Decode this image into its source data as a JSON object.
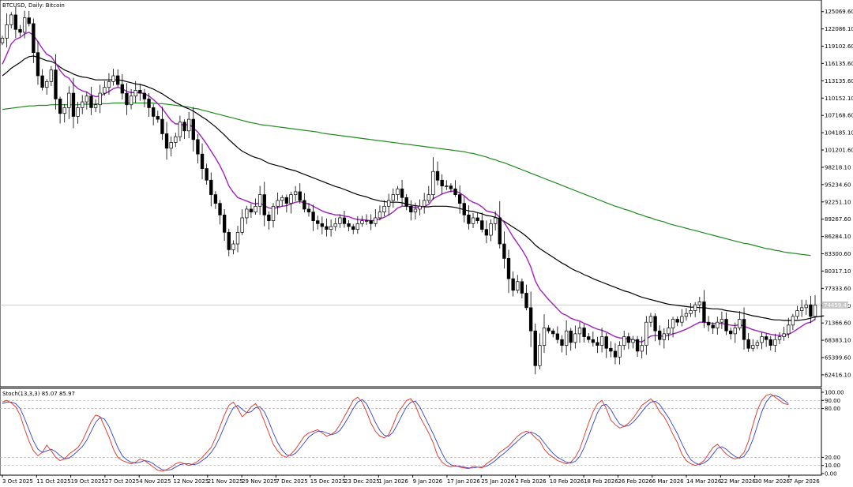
{
  "chart_data": {
    "type": "candlestick",
    "title": "BTCUSD, Daily:  Bitcoin",
    "indicator_title": "Stoch(13,3,3) 85.07 85.97",
    "current_price_label": "74459.43",
    "price_ticks": [
      "125069.60",
      "122086.10",
      "119102.60",
      "116135.60",
      "113135.60",
      "110152.10",
      "107168.60",
      "104185.10",
      "101201.60",
      "98218.10",
      "95234.60",
      "92251.10",
      "89267.60",
      "86284.10",
      "83300.60",
      "80317.10",
      "77333.60",
      "74350.10",
      "71366.60",
      "68383.10",
      "65399.60",
      "62416.10"
    ],
    "stoch_ticks": [
      "100.00",
      "90.00",
      "80.00",
      "20.00",
      "10.00",
      "0.00"
    ],
    "date_ticks": [
      "3 Oct 2025",
      "11 Oct 2025",
      "19 Oct 2025",
      "27 Oct 2025",
      "4 Nov 2025",
      "12 Nov 2025",
      "21 Nov 2025",
      "29 Nov 2025",
      "7 Dec 2025",
      "15 Dec 2025",
      "23 Dec 2025",
      "1 Jan 2026",
      "9 Jan 2026",
      "17 Jan 2026",
      "25 Jan 2026",
      "2 Feb 2026",
      "10 Feb 2026",
      "18 Feb 2026",
      "26 Feb 2026",
      "6 Mar 2026",
      "14 Mar 2026",
      "22 Mar 2026",
      "30 Mar 2026",
      "7 Apr 2026"
    ],
    "y_range": [
      60500,
      126800
    ],
    "stoch_range": [
      0,
      100
    ],
    "closes": [
      120500,
      122800,
      124500,
      122000,
      121500,
      124000,
      123000,
      118000,
      114000,
      112000,
      113000,
      115000,
      110000,
      107500,
      108500,
      111000,
      107000,
      108500,
      109500,
      110500,
      108500,
      109000,
      111000,
      112000,
      113000,
      114000,
      112500,
      111000,
      109000,
      110500,
      111500,
      111000,
      110000,
      108500,
      107000,
      106500,
      104000,
      101500,
      102500,
      103500,
      106000,
      104500,
      106500,
      103000,
      100500,
      98000,
      96000,
      93500,
      92000,
      90000,
      87000,
      84000,
      85000,
      87000,
      89500,
      91000,
      90500,
      91500,
      93500,
      90000,
      89000,
      91500,
      92500,
      93000,
      92000,
      93500,
      94000,
      92500,
      91000,
      90500,
      89000,
      88500,
      88000,
      87500,
      88000,
      88500,
      89500,
      88500,
      88000,
      87500,
      88500,
      89000,
      89000,
      88500,
      89500,
      90500,
      91500,
      92500,
      93500,
      94500,
      93000,
      91500,
      90500,
      91000,
      91500,
      92500,
      93500,
      97500,
      96000,
      95000,
      95000,
      94500,
      93500,
      92000,
      90000,
      88500,
      89500,
      89000,
      87500,
      86500,
      88500,
      89500,
      85000,
      82500,
      79000,
      77000,
      78500,
      76500,
      74000,
      70000,
      64000,
      67500,
      70500,
      70000,
      69500,
      68500,
      67500,
      70000,
      68000,
      69500,
      70500,
      69000,
      68500,
      68000,
      67500,
      69000,
      67000,
      66500,
      65500,
      67500,
      69000,
      68000,
      68500,
      66500,
      67500,
      71500,
      72500,
      70000,
      68500,
      69500,
      70500,
      72000,
      71500,
      72500,
      73000,
      73500,
      74500,
      75000,
      71500,
      71000,
      70500,
      71500,
      72000,
      70000,
      69500,
      70500,
      72000,
      68500,
      67000,
      67500,
      68000,
      69000,
      68500,
      67500,
      68500,
      69000,
      69500,
      71000,
      72500,
      73500,
      74000,
      74500,
      72500,
      74459
    ],
    "ma_fast_purple": [
      116000,
      117700,
      119500,
      120300,
      120600,
      121200,
      121500,
      121000,
      119900,
      118700,
      117700,
      117300,
      116200,
      114900,
      114000,
      113600,
      112500,
      111800,
      111400,
      111200,
      110700,
      110400,
      110500,
      110900,
      111300,
      111800,
      112000,
      111800,
      111300,
      111100,
      111100,
      111100,
      110900,
      110500,
      109900,
      109200,
      108400,
      107300,
      106300,
      105700,
      105700,
      105400,
      105700,
      105000,
      104300,
      103300,
      102200,
      101000,
      99800,
      98500,
      96900,
      95000,
      93900,
      93000,
      92700,
      92400,
      92100,
      91900,
      92100,
      91600,
      91200,
      91100,
      91300,
      91500,
      91600,
      91900,
      92200,
      92300,
      92100,
      91900,
      91500,
      91100,
      90700,
      90400,
      90200,
      90000,
      90000,
      89800,
      89700,
      89400,
      89200,
      89200,
      89100,
      89000,
      89100,
      89300,
      89600,
      90000,
      90500,
      91200,
      91500,
      91500,
      91400,
      91300,
      91300,
      91500,
      91800,
      92800,
      93200,
      93600,
      93900,
      94100,
      94100,
      93800,
      93300,
      92600,
      92200,
      91900,
      91400,
      90700,
      90500,
      90300,
      89600,
      88700,
      87500,
      86200,
      85100,
      84000,
      82700,
      81000,
      78600,
      77200,
      76300,
      75400,
      74600,
      73800,
      73000,
      72700,
      72200,
      71900,
      71700,
      71300,
      71000,
      70600,
      70300,
      70100,
      69800,
      69400,
      69000,
      68800,
      68700,
      68600,
      68500,
      68200,
      68100,
      68600,
      69100,
      69200,
      69100,
      69100,
      69200,
      69500,
      69700,
      70000,
      70300,
      70700,
      71100,
      71500,
      71500,
      71400,
      71300,
      71300,
      71300,
      71100,
      71000,
      70900,
      71100,
      70800,
      70500,
      70200,
      70000,
      69800,
      69600,
      69400,
      69300,
      69200,
      69200,
      69400,
      69800,
      70300,
      70800,
      71300,
      71500,
      72000
    ],
    "ma_mid_black": [
      114000,
      114600,
      115300,
      115800,
      116300,
      116900,
      117300,
      117400,
      117200,
      116900,
      116600,
      116500,
      116100,
      115500,
      115000,
      114700,
      114300,
      114000,
      113800,
      113700,
      113500,
      113300,
      113300,
      113300,
      113300,
      113300,
      113300,
      113200,
      113000,
      112800,
      112600,
      112500,
      112300,
      112000,
      111700,
      111300,
      110900,
      110400,
      109900,
      109400,
      109000,
      108600,
      108300,
      107900,
      107400,
      106900,
      106400,
      105800,
      105200,
      104500,
      103800,
      103000,
      102300,
      101600,
      101000,
      100600,
      100200,
      99900,
      99700,
      99300,
      98900,
      98700,
      98500,
      98300,
      98000,
      97800,
      97600,
      97300,
      97000,
      96700,
      96400,
      96100,
      95800,
      95500,
      95200,
      94900,
      94700,
      94400,
      94100,
      93800,
      93500,
      93300,
      93100,
      92800,
      92600,
      92400,
      92300,
      92200,
      92200,
      92200,
      92100,
      91900,
      91700,
      91600,
      91500,
      91400,
      91400,
      91500,
      91500,
      91500,
      91500,
      91400,
      91300,
      91100,
      90900,
      90700,
      90600,
      90400,
      90200,
      89900,
      89800,
      89600,
      89300,
      88900,
      88400,
      87900,
      87400,
      86900,
      86300,
      85600,
      84800,
      84200,
      83700,
      83200,
      82700,
      82200,
      81700,
      81300,
      80800,
      80400,
      80100,
      79700,
      79400,
      79000,
      78700,
      78400,
      78100,
      77800,
      77500,
      77200,
      76900,
      76700,
      76400,
      76100,
      75800,
      75600,
      75400,
      75200,
      75000,
      74800,
      74600,
      74500,
      74400,
      74300,
      74200,
      74100,
      74100,
      74000,
      74000,
      73900,
      73800,
      73800,
      73700,
      73500,
      73400,
      73300,
      73200,
      73000,
      72800,
      72600,
      72500,
      72300,
      72200,
      72000,
      71900,
      71900,
      71800,
      71800,
      71800,
      71800,
      71900,
      72000,
      72200,
      72400,
      72500,
      72600
    ],
    "ma_slow_green": [
      108200,
      108300,
      108400,
      108500,
      108600,
      108700,
      108800,
      108800,
      108900,
      108900,
      108900,
      109000,
      109000,
      109000,
      109000,
      109000,
      109000,
      109000,
      109100,
      109100,
      109100,
      109100,
      109200,
      109200,
      109200,
      109300,
      109300,
      109300,
      109300,
      109300,
      109300,
      109300,
      109300,
      109300,
      109300,
      109200,
      109200,
      109100,
      109000,
      108900,
      108800,
      108700,
      108600,
      108400,
      108300,
      108100,
      107900,
      107700,
      107500,
      107300,
      107100,
      106900,
      106700,
      106500,
      106300,
      106100,
      105900,
      105800,
      105600,
      105500,
      105400,
      105300,
      105200,
      105100,
      105000,
      104900,
      104800,
      104700,
      104600,
      104500,
      104400,
      104300,
      104100,
      104000,
      103900,
      103800,
      103700,
      103600,
      103500,
      103400,
      103300,
      103200,
      103100,
      103000,
      102900,
      102800,
      102700,
      102600,
      102500,
      102400,
      102300,
      102200,
      102100,
      102000,
      101900,
      101800,
      101700,
      101600,
      101500,
      101400,
      101300,
      101200,
      101100,
      101000,
      100900,
      100700,
      100600,
      100400,
      100200,
      100000,
      99700,
      99500,
      99200,
      99000,
      98700,
      98400,
      98100,
      97800,
      97500,
      97200,
      96900,
      96600,
      96300,
      96000,
      95700,
      95400,
      95100,
      94800,
      94500,
      94200,
      93900,
      93600,
      93300,
      93000,
      92700,
      92400,
      92100,
      91800,
      91500,
      91300,
      91000,
      90800,
      90500,
      90200,
      90000,
      89700,
      89500,
      89200,
      89000,
      88800,
      88500,
      88300,
      88100,
      87900,
      87700,
      87500,
      87300,
      87100,
      86900,
      86700,
      86500,
      86300,
      86100,
      85900,
      85700,
      85500,
      85300,
      85100,
      85000,
      84800,
      84600,
      84400,
      84200,
      84100,
      83900,
      83800,
      83600,
      83500,
      83400,
      83300,
      83200,
      83100,
      83000
    ],
    "stoch_k": [
      88,
      90,
      87,
      82,
      72,
      55,
      40,
      28,
      22,
      26,
      35,
      28,
      20,
      16,
      18,
      24,
      28,
      32,
      40,
      52,
      64,
      72,
      70,
      58,
      45,
      30,
      20,
      16,
      14,
      12,
      14,
      18,
      16,
      12,
      8,
      4,
      3,
      5,
      8,
      12,
      14,
      12,
      10,
      12,
      15,
      20,
      26,
      32,
      44,
      58,
      72,
      84,
      88,
      80,
      70,
      75,
      82,
      86,
      78,
      64,
      50,
      36,
      28,
      22,
      20,
      24,
      30,
      38,
      46,
      50,
      52,
      54,
      50,
      46,
      48,
      52,
      60,
      70,
      80,
      90,
      94,
      88,
      76,
      62,
      52,
      46,
      44,
      48,
      60,
      74,
      82,
      90,
      92,
      84,
      70,
      60,
      50,
      38,
      22,
      14,
      10,
      8,
      10,
      8,
      7,
      6,
      9,
      8,
      7,
      12,
      16,
      20,
      26,
      30,
      34,
      40,
      46,
      50,
      52,
      50,
      44,
      40,
      30,
      24,
      20,
      16,
      14,
      12,
      14,
      20,
      30,
      46,
      62,
      76,
      86,
      90,
      80,
      66,
      60,
      56,
      58,
      62,
      68,
      76,
      84,
      88,
      92,
      86,
      76,
      70,
      60,
      48,
      38,
      24,
      16,
      12,
      10,
      12,
      16,
      24,
      32,
      36,
      30,
      24,
      20,
      18,
      20,
      26,
      40,
      60,
      78,
      90,
      96,
      98,
      94,
      90,
      86,
      85
    ],
    "stoch_d": [
      86,
      88,
      88,
      86,
      80,
      68,
      54,
      40,
      30,
      26,
      28,
      30,
      27,
      22,
      18,
      19,
      23,
      28,
      33,
      41,
      52,
      63,
      69,
      67,
      58,
      45,
      32,
      22,
      17,
      14,
      13,
      14,
      16,
      15,
      12,
      8,
      5,
      4,
      5,
      8,
      11,
      12,
      12,
      11,
      12,
      16,
      20,
      26,
      34,
      45,
      58,
      71,
      81,
      84,
      79,
      75,
      76,
      81,
      82,
      76,
      64,
      50,
      38,
      29,
      23,
      22,
      25,
      31,
      38,
      45,
      49,
      52,
      52,
      50,
      48,
      49,
      53,
      61,
      70,
      80,
      88,
      91,
      86,
      75,
      63,
      53,
      47,
      46,
      51,
      61,
      72,
      82,
      88,
      89,
      82,
      71,
      60,
      49,
      37,
      25,
      15,
      11,
      9,
      9,
      8,
      7,
      7,
      8,
      8,
      9,
      12,
      16,
      21,
      25,
      30,
      35,
      40,
      45,
      49,
      51,
      49,
      45,
      38,
      31,
      25,
      20,
      17,
      14,
      13,
      15,
      21,
      32,
      46,
      61,
      75,
      84,
      85,
      79,
      69,
      61,
      58,
      59,
      63,
      69,
      76,
      83,
      88,
      89,
      85,
      77,
      69,
      59,
      49,
      37,
      26,
      17,
      13,
      11,
      13,
      17,
      24,
      31,
      33,
      30,
      25,
      21,
      19,
      21,
      29,
      42,
      59,
      76,
      88,
      95,
      96,
      94,
      90,
      86
    ]
  }
}
